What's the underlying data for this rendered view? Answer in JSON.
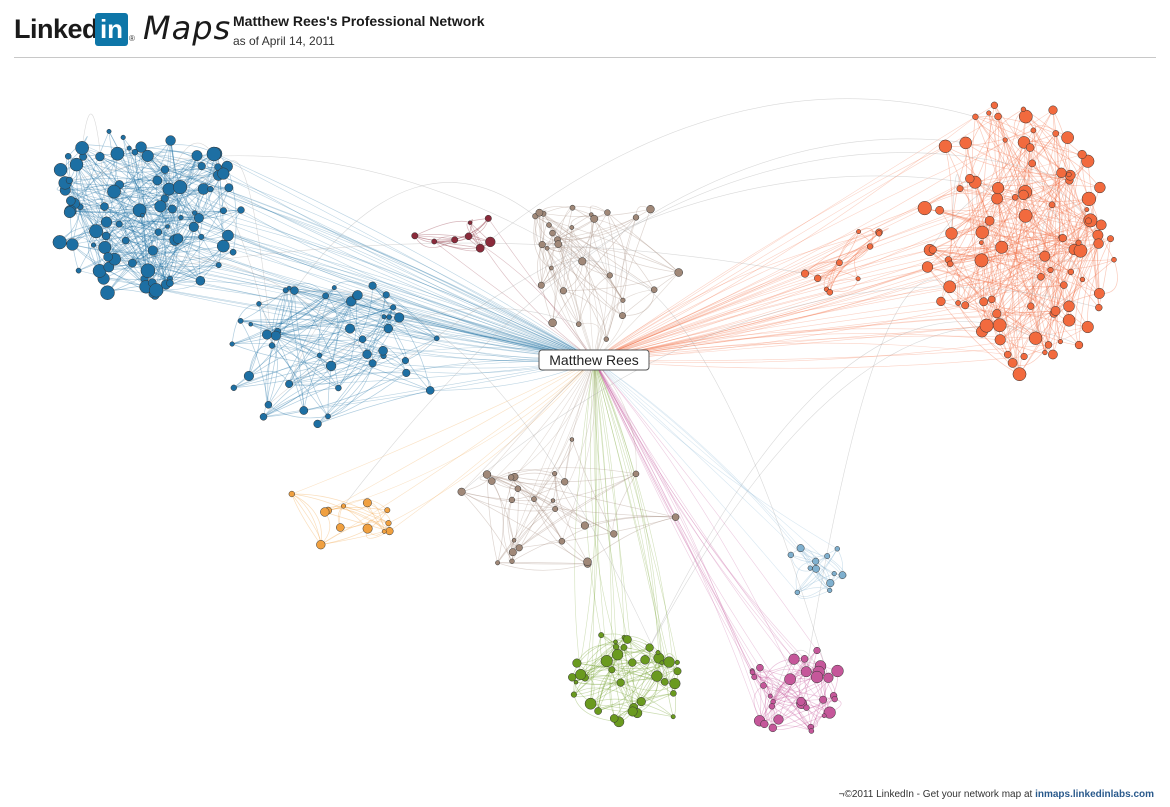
{
  "header": {
    "logo_linked": "Linked",
    "logo_in": "in",
    "logo_reg": "®",
    "logo_maps": "Maps",
    "title": "Matthew Rees's Professional Network",
    "subtitle": "as of April 14, 2011"
  },
  "graph": {
    "center_label": "Matthew Rees",
    "colors": {
      "blue": "#1d6fa3",
      "orange": "#f26a3e",
      "green": "#6a9a1f",
      "pink": "#c5579a",
      "amber": "#f0a040",
      "tan": "#a08878",
      "maroon": "#8a2a3a",
      "lightblue": "#7fb0cf",
      "grey": "#aaaaaa"
    }
  },
  "footer": {
    "text": "¬©2011 LinkedIn - Get your network map at",
    "link": "inmaps.linkedinlabs.com"
  }
}
